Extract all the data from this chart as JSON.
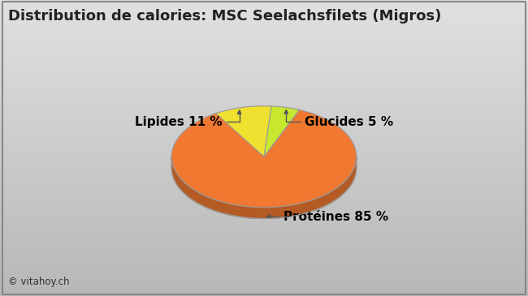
{
  "title": "Distribution de calories: MSC Seelachsfilets (Migros)",
  "slices": [
    85,
    11,
    5
  ],
  "labels": [
    "Protéines 85 %",
    "Lipides 11 %",
    "Glucides 5 %"
  ],
  "colors": [
    "#F07830",
    "#F0E030",
    "#C8E830"
  ],
  "background_color_top": "#D8D8D8",
  "background_color_bottom": "#B8B8B8",
  "watermark": "© vitahoy.ch",
  "title_fontsize": 13,
  "label_fontsize": 11
}
